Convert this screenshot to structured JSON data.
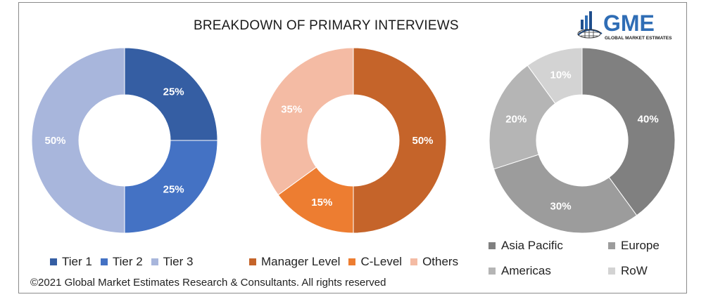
{
  "title": "BREAKDOWN OF PRIMARY INTERVIEWS",
  "logo": {
    "brand": "GME",
    "tagline": "GLOBAL MARKET ESTIMATES",
    "colors": {
      "text": "#2f6db5",
      "bars": "#1f4e8c"
    }
  },
  "copyright": "©2021 Global Market Estimates Research & Consultants. All rights reserved",
  "chart_data": [
    {
      "type": "pie",
      "donut": true,
      "categories": [
        "Tier 1",
        "Tier 2",
        "Tier 3"
      ],
      "values": [
        25,
        25,
        50
      ],
      "labels": [
        "25%",
        "25%",
        "50%"
      ],
      "colors": [
        "#355ea3",
        "#4472c4",
        "#a8b6dc"
      ],
      "label_colors": [
        "#ffffff",
        "#ffffff",
        "#ffffff"
      ],
      "legend": "bottom"
    },
    {
      "type": "pie",
      "donut": true,
      "categories": [
        "Manager Level",
        "C-Level",
        "Others"
      ],
      "values": [
        50,
        15,
        35
      ],
      "labels": [
        "50%",
        "15%",
        "35%"
      ],
      "colors": [
        "#c5642a",
        "#ed7d31",
        "#f4bba4"
      ],
      "label_colors": [
        "#ffffff",
        "#ffffff",
        "#ffffff"
      ],
      "legend": "bottom"
    },
    {
      "type": "pie",
      "donut": true,
      "categories": [
        "Asia Pacific",
        "Europe",
        "Americas",
        "RoW"
      ],
      "values": [
        40,
        30,
        20,
        10
      ],
      "labels": [
        "40%",
        "30%",
        "20%",
        "10%"
      ],
      "colors": [
        "#808080",
        "#9c9c9c",
        "#b5b5b5",
        "#d3d3d3"
      ],
      "label_colors": [
        "#ffffff",
        "#ffffff",
        "#ffffff",
        "#ffffff"
      ],
      "legend": "bottom"
    }
  ]
}
